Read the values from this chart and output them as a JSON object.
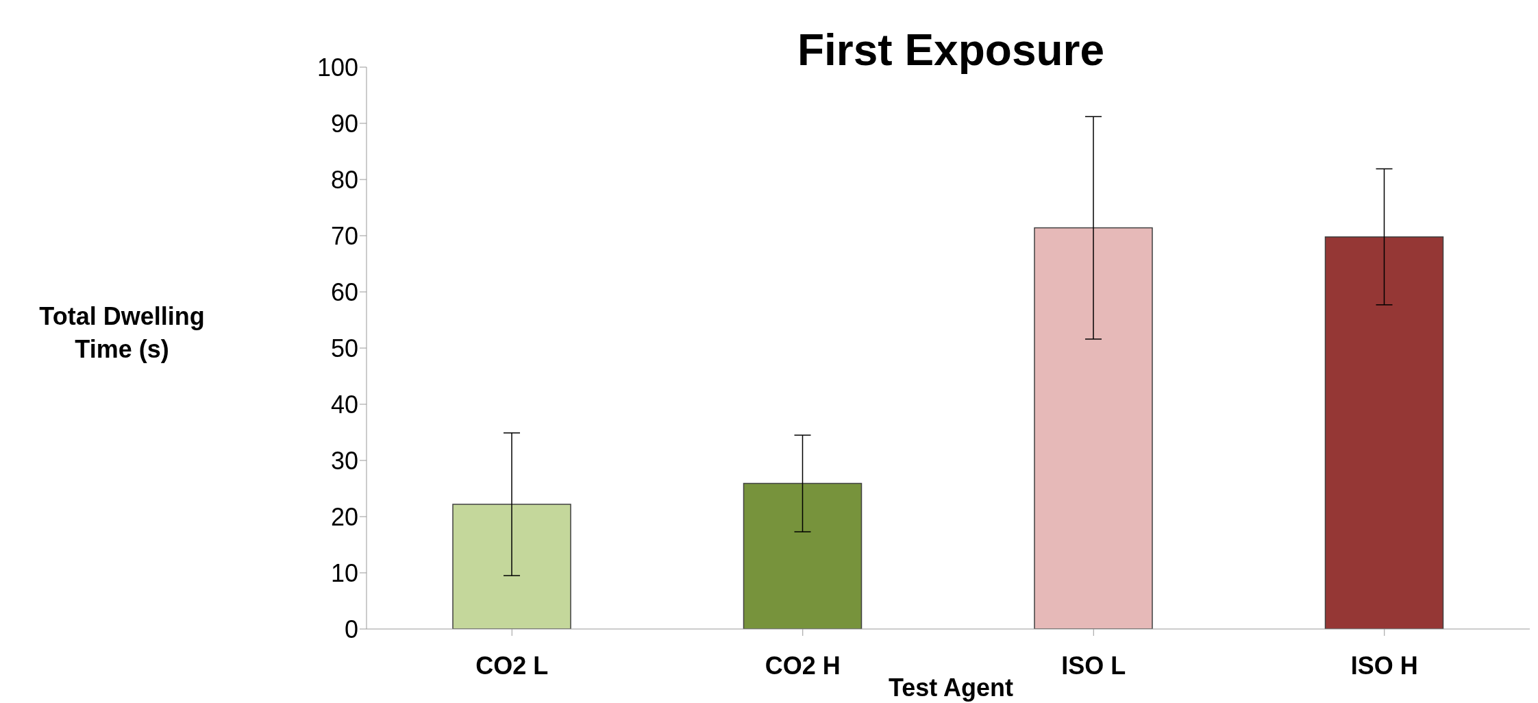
{
  "chart_data": {
    "type": "bar",
    "title": "First Exposure",
    "xlabel": "Test Agent",
    "ylabel": "Total Dwelling Time (s)",
    "categories": [
      "CO2 L",
      "CO2 H",
      "ISO L",
      "ISO H"
    ],
    "values": [
      22.2,
      25.9,
      71.4,
      69.8
    ],
    "colors": [
      "#c4d79b",
      "#77933c",
      "#e6b9b8",
      "#953735"
    ],
    "errors": [
      12.7,
      8.6,
      19.8,
      12.1
    ],
    "ylim": [
      0,
      100
    ],
    "yticks": [
      0,
      10,
      20,
      30,
      40,
      50,
      60,
      70,
      80,
      90,
      100
    ],
    "grid": false,
    "legend": false
  }
}
